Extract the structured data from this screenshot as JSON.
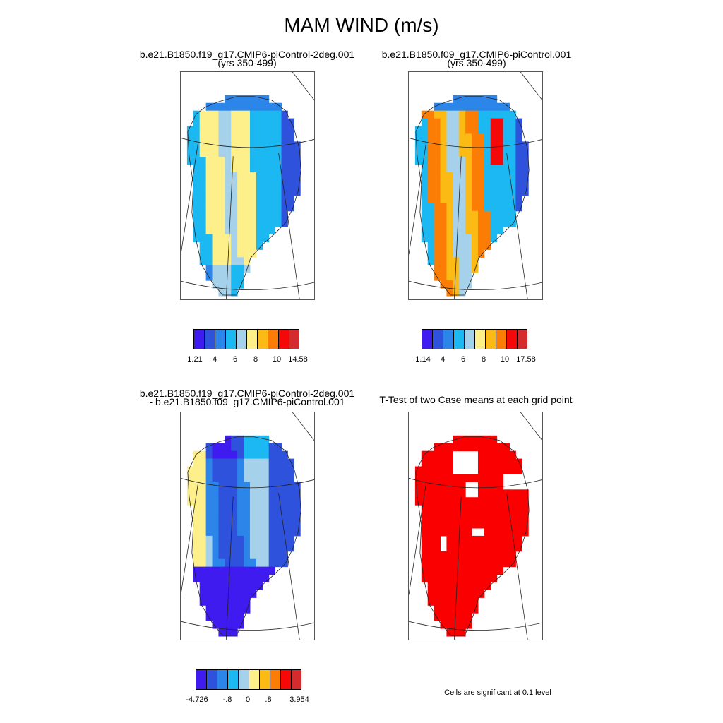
{
  "title": "MAM WIND (m/s)",
  "panels": [
    {
      "id": "case1",
      "title_line1": "b.e21.B1850.f19_g17.CMIP6-piControl-2deg.001",
      "title_line2": "(yrs 350-499)",
      "colorbar_labels": [
        "1.21",
        "4",
        "6",
        "8",
        "10",
        "14.58"
      ]
    },
    {
      "id": "case2",
      "title_line1": "b.e21.B1850.f09_g17.CMIP6-piControl.001",
      "title_line2": "(yrs 350-499)",
      "colorbar_labels": [
        "1.14",
        "4",
        "6",
        "8",
        "10",
        "17.58"
      ]
    },
    {
      "id": "diff",
      "title_line1": "b.e21.B1850.f19_g17.CMIP6-piControl-2deg.001",
      "title_line2": "- b.e21.B1850.f09_g17.CMIP6-piControl.001",
      "colorbar_labels": [
        "-4.726",
        "-.8",
        "0",
        ".8",
        "3.954"
      ]
    },
    {
      "id": "ttest",
      "title_line1": "T-Test of two Case means at each grid point",
      "title_line2": ""
    }
  ],
  "footnote": "Cells are significant at 0.1 level",
  "colors": {
    "scale": [
      "#3f1bef",
      "#2f52dd",
      "#2c86ea",
      "#1bb8f2",
      "#a5d1ea",
      "#fdf08a",
      "#fbbb14",
      "#fb7d05",
      "#f40808",
      "#d42b2f"
    ],
    "significant": "#fa0000"
  }
}
